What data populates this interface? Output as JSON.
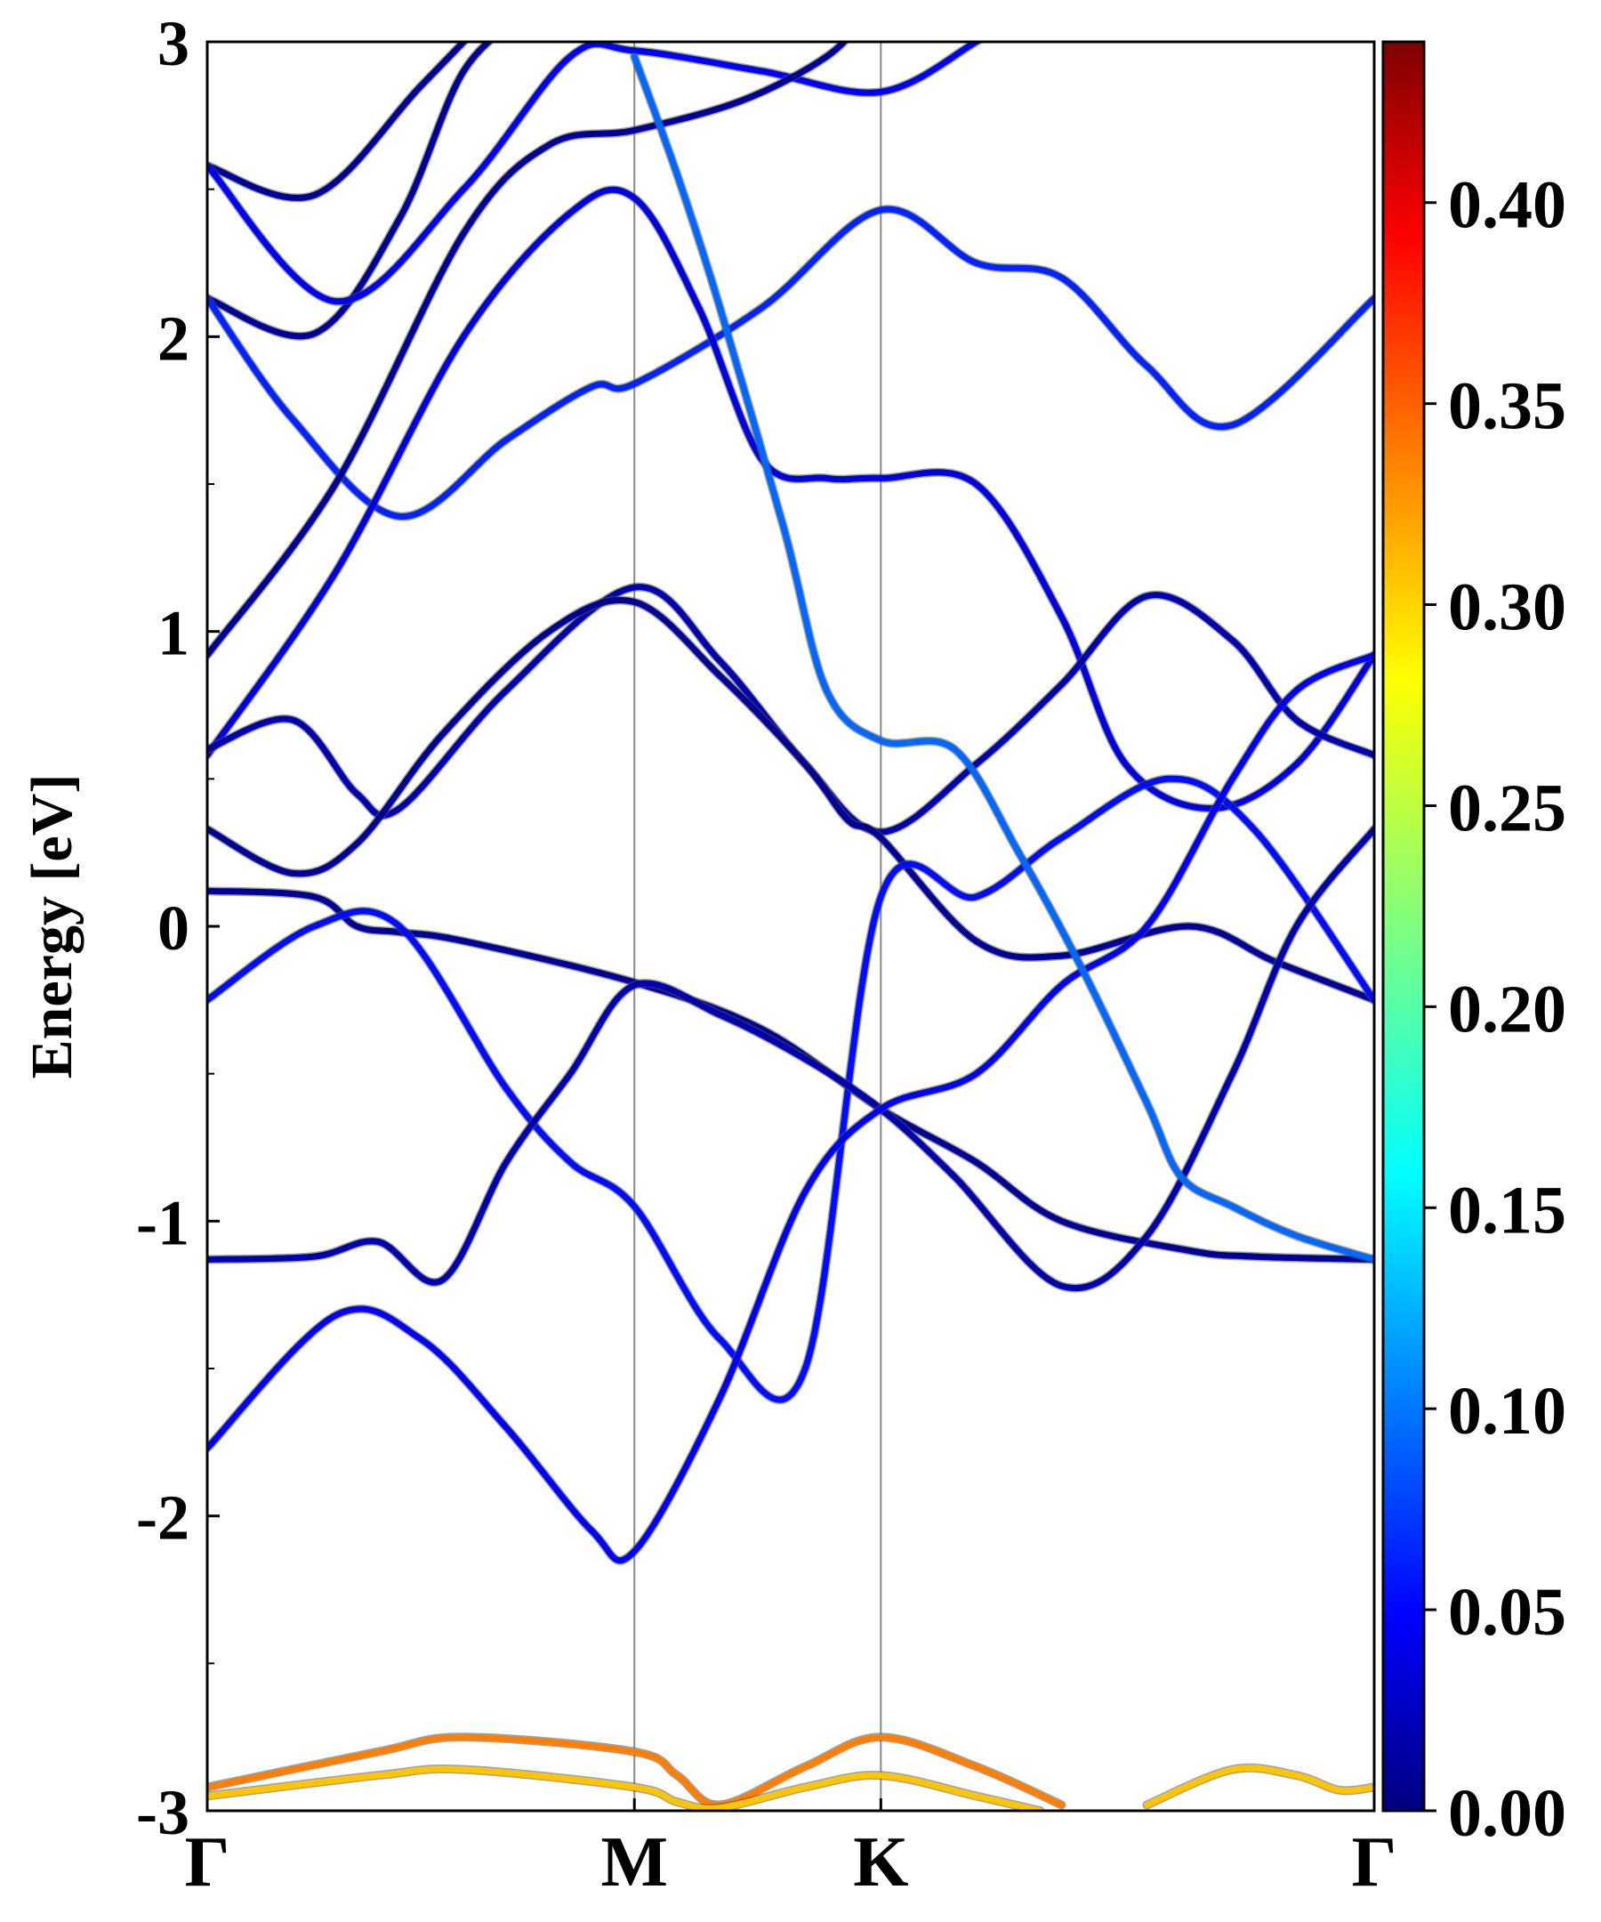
{
  "chart_data": {
    "type": "line",
    "title": "",
    "ylabel": "Energy [eV]",
    "ylim": [
      -3,
      3
    ],
    "yticks": [
      "3",
      "2",
      "1",
      "0",
      "-1",
      "-2",
      "-3"
    ],
    "kpath": [
      {
        "label": "Γ",
        "x": 0.0
      },
      {
        "label": "M",
        "x": 1.0
      },
      {
        "label": "K",
        "x": 1.577
      },
      {
        "label": "Γ",
        "x": 2.732
      }
    ],
    "colorbar": {
      "min": 0.0,
      "max": 0.44,
      "ticks": [
        "0.00",
        "0.05",
        "0.10",
        "0.15",
        "0.20",
        "0.25",
        "0.30",
        "0.35",
        "0.40"
      ],
      "colormap": "jet"
    },
    "series": [
      {
        "values": [
          [
            0,
            2.58
          ],
          [
            0.25,
            2.48
          ],
          [
            0.5,
            2.85
          ],
          [
            0.7,
            3.15
          ]
        ],
        "weight": 0.01
      },
      {
        "values": [
          [
            0,
            2.13
          ],
          [
            0.25,
            2.01
          ],
          [
            0.45,
            2.4
          ],
          [
            0.6,
            2.9
          ],
          [
            0.75,
            3.1
          ]
        ],
        "weight": 0.01
      },
      {
        "values": [
          [
            0,
            2.58
          ],
          [
            0.3,
            2.12
          ],
          [
            0.6,
            2.5
          ],
          [
            0.85,
            2.95
          ],
          [
            1.0,
            2.97
          ],
          [
            1.3,
            2.9
          ],
          [
            1.577,
            2.83
          ],
          [
            1.8,
            3.0
          ],
          [
            1.9,
            3.1
          ]
        ],
        "weight": 0.05
      },
      {
        "values": [
          [
            0,
            2.13
          ],
          [
            0.2,
            1.72
          ],
          [
            0.45,
            1.39
          ],
          [
            0.7,
            1.65
          ],
          [
            0.9,
            1.83
          ],
          [
            1.0,
            1.84
          ],
          [
            1.3,
            2.1
          ],
          [
            1.577,
            2.43
          ],
          [
            1.8,
            2.25
          ],
          [
            2.0,
            2.2
          ],
          [
            2.2,
            1.9
          ],
          [
            2.4,
            1.7
          ],
          [
            2.732,
            2.13
          ]
        ],
        "weight": 0.07
      },
      {
        "values": [
          [
            0,
            0.92
          ],
          [
            0.3,
            1.5
          ],
          [
            0.6,
            2.35
          ],
          [
            0.8,
            2.65
          ],
          [
            1.0,
            2.7
          ],
          [
            1.25,
            2.8
          ],
          [
            1.45,
            2.95
          ],
          [
            1.55,
            3.1
          ]
        ],
        "weight": 0.01
      },
      {
        "values": [
          [
            0,
            0.58
          ],
          [
            0.3,
            1.2
          ],
          [
            0.6,
            2.0
          ],
          [
            0.85,
            2.42
          ],
          [
            1.0,
            2.47
          ],
          [
            1.15,
            2.1
          ],
          [
            1.3,
            1.58
          ],
          [
            1.45,
            1.52
          ],
          [
            1.577,
            1.52
          ],
          [
            1.8,
            1.5
          ],
          [
            2.0,
            1.05
          ],
          [
            2.15,
            0.55
          ],
          [
            2.35,
            0.4
          ],
          [
            2.55,
            0.55
          ],
          [
            2.732,
            0.92
          ]
        ],
        "weight": 0.04
      },
      {
        "values": [
          [
            0,
            0.6
          ],
          [
            0.2,
            0.7
          ],
          [
            0.35,
            0.45
          ],
          [
            0.45,
            0.4
          ],
          [
            0.7,
            0.8
          ],
          [
            1.0,
            1.15
          ],
          [
            1.2,
            0.9
          ],
          [
            1.4,
            0.55
          ],
          [
            1.577,
            0.32
          ],
          [
            1.8,
            0.55
          ],
          [
            2.0,
            0.82
          ],
          [
            2.2,
            1.12
          ],
          [
            2.4,
            0.97
          ],
          [
            2.55,
            0.7
          ],
          [
            2.732,
            0.58
          ]
        ],
        "weight": 0.02
      },
      {
        "values": [
          [
            0,
            0.33
          ],
          [
            0.2,
            0.18
          ],
          [
            0.35,
            0.28
          ],
          [
            0.55,
            0.65
          ],
          [
            0.8,
            1.0
          ],
          [
            1.0,
            1.1
          ],
          [
            1.2,
            0.85
          ],
          [
            1.4,
            0.55
          ],
          [
            1.5,
            0.36
          ],
          [
            1.577,
            0.3
          ],
          [
            1.8,
            -0.05
          ],
          [
            2.0,
            -0.1
          ],
          [
            2.3,
            0.0
          ],
          [
            2.5,
            -0.12
          ],
          [
            2.732,
            -0.25
          ]
        ],
        "weight": 0.01
      },
      {
        "values": [
          [
            0,
            0.12
          ],
          [
            0.25,
            0.1
          ],
          [
            0.35,
            0.0
          ],
          [
            0.45,
            -0.02
          ],
          [
            0.6,
            -0.05
          ],
          [
            1.0,
            -0.19
          ],
          [
            1.3,
            -0.35
          ],
          [
            1.577,
            -0.62
          ],
          [
            1.8,
            -0.8
          ],
          [
            2.0,
            -1.0
          ],
          [
            2.3,
            -1.1
          ],
          [
            2.45,
            -1.12
          ],
          [
            2.732,
            -1.13
          ]
        ],
        "weight": 0.01
      },
      {
        "values": [
          [
            0,
            -0.25
          ],
          [
            0.25,
            0.0
          ],
          [
            0.45,
            0.0
          ],
          [
            0.7,
            -0.55
          ],
          [
            0.85,
            -0.8
          ],
          [
            1.0,
            -0.95
          ],
          [
            1.2,
            -1.4
          ],
          [
            1.4,
            -1.5
          ],
          [
            1.577,
            0.1
          ],
          [
            1.8,
            0.1
          ],
          [
            2.0,
            0.3
          ],
          [
            2.25,
            0.5
          ],
          [
            2.45,
            0.33
          ],
          [
            2.732,
            -0.25
          ]
        ],
        "weight": 0.06
      },
      {
        "values": [
          [
            0,
            -1.13
          ],
          [
            0.25,
            -1.12
          ],
          [
            0.4,
            -1.07
          ],
          [
            0.55,
            -1.2
          ],
          [
            0.7,
            -0.8
          ],
          [
            0.85,
            -0.5
          ],
          [
            1.0,
            -0.2
          ],
          [
            1.2,
            -0.3
          ],
          [
            1.4,
            -0.45
          ],
          [
            1.577,
            -0.62
          ],
          [
            1.75,
            -0.85
          ],
          [
            2.0,
            -1.22
          ],
          [
            2.2,
            -1.05
          ],
          [
            2.4,
            -0.5
          ],
          [
            2.55,
            0.0
          ],
          [
            2.732,
            0.33
          ]
        ],
        "weight": 0.02
      },
      {
        "values": [
          [
            0,
            -1.77
          ],
          [
            0.3,
            -1.32
          ],
          [
            0.5,
            -1.4
          ],
          [
            0.7,
            -1.7
          ],
          [
            0.9,
            -2.05
          ],
          [
            1.0,
            -2.12
          ],
          [
            1.2,
            -1.6
          ],
          [
            1.4,
            -0.9
          ],
          [
            1.577,
            -0.62
          ],
          [
            1.8,
            -0.5
          ],
          [
            2.0,
            -0.2
          ],
          [
            2.2,
            0.0
          ],
          [
            2.4,
            0.5
          ],
          [
            2.55,
            0.8
          ],
          [
            2.732,
            0.92
          ]
        ],
        "weight": 0.05
      },
      {
        "values": [
          [
            1.0,
            2.95
          ],
          [
            1.1,
            2.55
          ],
          [
            1.2,
            2.1
          ],
          [
            1.35,
            1.35
          ],
          [
            1.45,
            0.8
          ],
          [
            1.577,
            0.63
          ],
          [
            1.75,
            0.6
          ],
          [
            1.9,
            0.25
          ],
          [
            2.05,
            -0.15
          ],
          [
            2.2,
            -0.6
          ],
          [
            2.28,
            -0.85
          ],
          [
            2.4,
            -0.95
          ],
          [
            2.55,
            -1.05
          ],
          [
            2.732,
            -1.13
          ]
        ],
        "weight": 0.1
      },
      {
        "values": [
          [
            0,
            -2.92
          ],
          [
            0.4,
            -2.8
          ],
          [
            0.6,
            -2.75
          ],
          [
            1.0,
            -2.8
          ],
          [
            1.1,
            -2.88
          ],
          [
            1.2,
            -2.98
          ],
          [
            1.4,
            -2.85
          ],
          [
            1.577,
            -2.75
          ],
          [
            1.8,
            -2.85
          ],
          [
            2.0,
            -2.98
          ]
        ],
        "weight": 0.33
      },
      {
        "values": [
          [
            0,
            -2.95
          ],
          [
            0.4,
            -2.88
          ],
          [
            0.6,
            -2.86
          ],
          [
            1.0,
            -2.92
          ],
          [
            1.1,
            -2.97
          ],
          [
            1.2,
            -2.99
          ],
          [
            1.4,
            -2.92
          ],
          [
            1.577,
            -2.88
          ],
          [
            1.8,
            -2.95
          ],
          [
            1.95,
            -3.0
          ]
        ],
        "weight": 0.3
      },
      {
        "values": [
          [
            2.2,
            -2.98
          ],
          [
            2.4,
            -2.86
          ],
          [
            2.55,
            -2.88
          ],
          [
            2.65,
            -2.93
          ],
          [
            2.732,
            -2.92
          ]
        ],
        "weight": 0.3
      }
    ]
  }
}
